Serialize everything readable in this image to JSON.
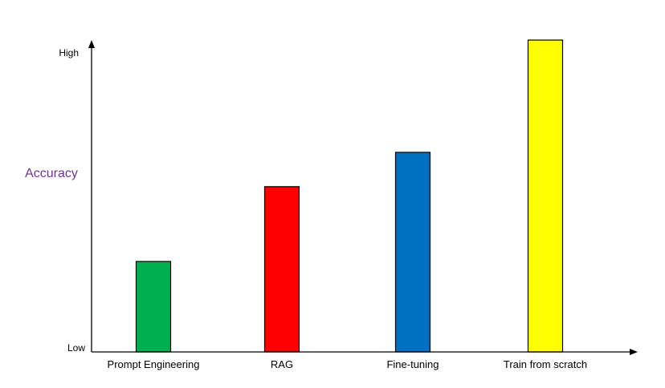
{
  "chart_data": {
    "type": "bar",
    "categories": [
      "Prompt Engineering",
      "RAG",
      "Fine-tuning",
      "Train from scratch"
    ],
    "values": [
      0.29,
      0.53,
      0.64,
      1.0
    ],
    "colors": [
      "#00b050",
      "#ff0000",
      "#0070c0",
      "#ffff00"
    ],
    "title": "",
    "xlabel": "",
    "ylabel": "Accuracy",
    "ylabel_color": "#7030a0",
    "ylim": [
      0,
      1
    ],
    "y_tick_labels": {
      "low": "Low",
      "high": "High"
    },
    "grid": false,
    "legend": "none"
  }
}
